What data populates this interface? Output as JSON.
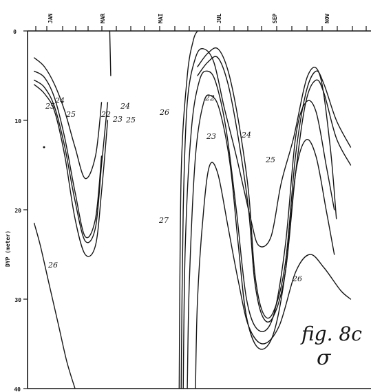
{
  "chart_data": {
    "type": "contour",
    "ylabel": "DYP (meter)",
    "months": [
      "JAN",
      "MAR",
      "MAI",
      "JUL",
      "SEP",
      "NOV"
    ],
    "y_ticks": [
      "0",
      "10",
      "20",
      "30",
      "40"
    ],
    "ylim": [
      0,
      40
    ],
    "y_inverted": true,
    "annotation": "fig. 8c",
    "annotation_symbol": "σ",
    "levels": [
      22,
      23,
      24,
      25,
      26,
      27
    ],
    "contours": [
      {
        "level": 26,
        "label": "26",
        "points": [
          [
            1.0,
            21.5
          ],
          [
            1.3,
            24
          ],
          [
            1.7,
            28
          ],
          [
            2.2,
            33
          ],
          [
            2.6,
            37
          ],
          [
            3.0,
            40
          ]
        ]
      },
      {
        "level": 25,
        "label": "25",
        "points": [
          [
            1.0,
            6
          ],
          [
            1.5,
            7
          ],
          [
            2.0,
            9
          ],
          [
            2.5,
            14
          ],
          [
            3.0,
            21
          ],
          [
            3.5,
            25
          ],
          [
            4.0,
            24
          ],
          [
            4.3,
            18
          ],
          [
            4.6,
            10
          ]
        ]
      },
      {
        "level": 25,
        "label": "25",
        "points": [
          [
            1.0,
            5.5
          ],
          [
            1.5,
            6.3
          ],
          [
            2.0,
            8.5
          ],
          [
            2.5,
            13
          ],
          [
            3.0,
            19
          ],
          [
            3.5,
            23.5
          ],
          [
            4.0,
            22
          ],
          [
            4.3,
            15
          ],
          [
            4.6,
            8
          ]
        ]
      },
      {
        "level": 24,
        "label": "24",
        "points": [
          [
            1.0,
            4.5
          ],
          [
            1.5,
            5.2
          ],
          [
            2.0,
            7.5
          ],
          [
            2.5,
            12
          ],
          [
            3.0,
            18
          ],
          [
            3.5,
            23
          ],
          [
            4.0,
            21
          ],
          [
            4.3,
            14
          ]
        ]
      },
      {
        "level": 23,
        "label": "23",
        "points": [
          [
            1.0,
            3
          ],
          [
            1.5,
            4
          ],
          [
            2.0,
            6
          ],
          [
            2.5,
            9
          ],
          [
            3.0,
            13
          ],
          [
            3.5,
            16.5
          ],
          [
            4.0,
            14
          ],
          [
            4.3,
            8
          ]
        ]
      },
      {
        "level": 22,
        "label": "22",
        "points": [
          [
            4.7,
            0
          ],
          [
            4.75,
            5
          ]
        ]
      },
      {
        "level": 26,
        "label": "26",
        "points": [
          [
            9.0,
            5
          ],
          [
            9.5,
            3.5
          ],
          [
            10.0,
            3
          ],
          [
            10.5,
            6
          ],
          [
            11.0,
            12
          ],
          [
            11.5,
            20
          ],
          [
            11.8,
            28
          ],
          [
            12.2,
            32
          ],
          [
            12.7,
            32
          ],
          [
            13.3,
            27
          ],
          [
            13.8,
            16
          ],
          [
            14.3,
            8
          ],
          [
            14.8,
            5.5
          ],
          [
            15.2,
            7
          ],
          [
            15.8,
            12
          ],
          [
            16.5,
            15
          ]
        ]
      },
      {
        "level": 24,
        "label": "24",
        "points": [
          [
            9.0,
            4
          ],
          [
            9.5,
            2.5
          ],
          [
            10.0,
            2
          ],
          [
            10.5,
            4.5
          ],
          [
            11.0,
            10
          ],
          [
            11.5,
            18
          ],
          [
            11.8,
            27
          ],
          [
            12.2,
            31.5
          ],
          [
            12.7,
            31.5
          ],
          [
            13.3,
            26
          ],
          [
            13.8,
            14
          ],
          [
            14.3,
            7
          ],
          [
            14.8,
            4.5
          ],
          [
            15.2,
            6
          ],
          [
            15.8,
            10
          ],
          [
            16.5,
            13
          ]
        ]
      },
      {
        "level": 27,
        "label": "27",
        "points": [
          [
            8.9,
            40
          ],
          [
            9.0,
            30
          ],
          [
            9.3,
            20
          ],
          [
            9.6,
            15
          ],
          [
            10.0,
            16
          ],
          [
            10.5,
            22
          ],
          [
            11.0,
            28
          ],
          [
            11.5,
            33
          ],
          [
            12.2,
            35
          ],
          [
            13.0,
            33
          ],
          [
            13.8,
            27
          ],
          [
            14.5,
            25
          ],
          [
            15.2,
            26.5
          ],
          [
            16.0,
            29
          ],
          [
            16.5,
            30
          ]
        ]
      },
      {
        "level": 25,
        "label": "25",
        "points": [
          [
            8.5,
            40
          ],
          [
            8.6,
            28
          ],
          [
            8.9,
            14
          ],
          [
            9.3,
            8
          ],
          [
            9.7,
            7.3
          ],
          [
            10.1,
            9
          ],
          [
            10.6,
            15
          ],
          [
            11.0,
            24
          ],
          [
            11.4,
            32
          ],
          [
            12.0,
            35.5
          ],
          [
            12.7,
            34
          ],
          [
            13.3,
            27
          ],
          [
            13.8,
            16
          ],
          [
            14.3,
            12.2
          ],
          [
            14.8,
            14
          ],
          [
            15.3,
            20
          ],
          [
            15.7,
            25
          ]
        ]
      },
      {
        "level": 24,
        "label": "24",
        "points": [
          [
            8.3,
            40
          ],
          [
            8.4,
            24
          ],
          [
            8.7,
            11
          ],
          [
            9.1,
            5.5
          ],
          [
            9.5,
            4.5
          ],
          [
            9.9,
            5.8
          ],
          [
            10.4,
            11
          ],
          [
            10.9,
            20
          ],
          [
            11.4,
            30
          ],
          [
            12.0,
            33.5
          ],
          [
            12.7,
            32
          ],
          [
            13.3,
            24
          ],
          [
            13.8,
            12
          ],
          [
            14.3,
            8
          ],
          [
            14.8,
            9
          ],
          [
            15.3,
            15
          ],
          [
            15.7,
            20
          ]
        ]
      },
      {
        "level": 23,
        "label": "23",
        "points": [
          [
            8.2,
            40
          ],
          [
            8.3,
            20
          ],
          [
            8.5,
            8
          ],
          [
            8.9,
            3
          ],
          [
            9.3,
            2
          ],
          [
            9.8,
            3.5
          ],
          [
            10.3,
            8.5
          ],
          [
            10.9,
            14
          ],
          [
            11.6,
            21
          ],
          [
            12.0,
            24
          ],
          [
            12.6,
            23
          ],
          [
            13.1,
            17
          ],
          [
            13.7,
            12
          ],
          [
            14.4,
            5
          ],
          [
            15.0,
            5
          ],
          [
            15.5,
            13
          ],
          [
            15.8,
            21
          ]
        ]
      },
      {
        "level": 22,
        "label": "22",
        "points": [
          [
            8.1,
            40
          ],
          [
            8.2,
            16
          ],
          [
            8.5,
            5
          ],
          [
            8.8,
            1
          ],
          [
            9.0,
            0
          ]
        ]
      }
    ]
  }
}
